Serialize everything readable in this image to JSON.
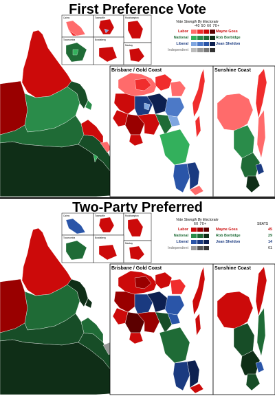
{
  "colors": {
    "labor": [
      "#ff6b6b",
      "#f02d2d",
      "#cc0a0a",
      "#990000",
      "#5c0000"
    ],
    "national": [
      "#33b05c",
      "#2a8c4a",
      "#1f6b36",
      "#174d27",
      "#0f2e17"
    ],
    "liberal": [
      "#7fa6e0",
      "#4c79c7",
      "#2a55a8",
      "#1a3a80",
      "#0d2050"
    ],
    "independent": [
      "#bbbbbb",
      "#999999",
      "#777777",
      "#555555",
      "#333333"
    ]
  },
  "first_preference": {
    "title": "First Preference Vote",
    "legend": {
      "title": "Vote Strength By Electorate",
      "scale": "-40  50  60  70+",
      "parties": [
        {
          "name": "Labor",
          "leader": "Mayne Goss",
          "color_key": "labor"
        },
        {
          "name": "National",
          "leader": "Rob Borbidge",
          "color_key": "national"
        },
        {
          "name": "Liberal",
          "leader": "Joan Sheldon",
          "color_key": "liberal"
        },
        {
          "name": "Independent",
          "leader": "",
          "color_key": "independent"
        }
      ]
    },
    "insets": [
      "Cairns",
      "Townsville",
      "Rockhampton",
      "Toowoomba",
      "Bundaberg",
      "Mackay"
    ],
    "boxes": [
      "Brisbane / Gold Coast",
      "Sunshine Coast"
    ]
  },
  "two_party": {
    "title": "Two-Party Preferred",
    "legend": {
      "title": "Vote Strength By Electorate",
      "scale": "60  70+",
      "seats_header": "SEATS",
      "parties": [
        {
          "name": "Labor",
          "leader": "Mayne Goss",
          "seats": "45",
          "color_key": "labor"
        },
        {
          "name": "National",
          "leader": "Rob Borbidge",
          "seats": "29",
          "color_key": "national"
        },
        {
          "name": "Liberal",
          "leader": "Joan Sheldon",
          "seats": "14",
          "color_key": "liberal"
        },
        {
          "name": "Independent",
          "leader": "",
          "seats": "01",
          "color_key": "independent"
        }
      ]
    },
    "insets": [
      "Cairns",
      "Townsville",
      "Rockhampton",
      "Toowoomba",
      "Bundaberg",
      "Mackay"
    ],
    "boxes": [
      "Brisbane / Gold Coast",
      "Sunshine Coast"
    ]
  }
}
